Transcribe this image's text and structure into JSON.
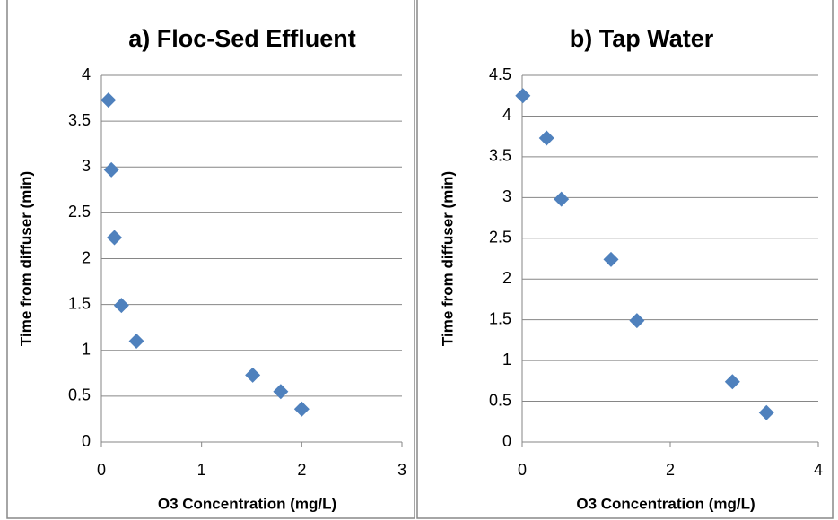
{
  "chart_data": [
    {
      "type": "scatter",
      "title": "a) Floc-Sed Effluent",
      "xlabel": "O3 Concentration (mg/L)",
      "ylabel": "Time from diffuser (min)",
      "x": [
        0.07,
        0.1,
        0.13,
        0.2,
        0.35,
        1.51,
        1.79,
        2.0
      ],
      "y": [
        3.73,
        2.97,
        2.23,
        1.49,
        1.1,
        0.73,
        0.55,
        0.36
      ],
      "xlim": [
        0,
        3
      ],
      "ylim": [
        0,
        4
      ],
      "xticks": [
        0,
        1,
        2,
        3
      ],
      "yticks": [
        0,
        0.5,
        1,
        1.5,
        2,
        2.5,
        3,
        3.5,
        4
      ],
      "color": "#4f81bd",
      "grid": true
    },
    {
      "type": "scatter",
      "title": "b) Tap Water",
      "xlabel": "O3 Concentration (mg/L)",
      "ylabel": "Time from diffuser (min)",
      "x": [
        0.01,
        0.33,
        0.53,
        1.2,
        1.55,
        2.84,
        3.3
      ],
      "y": [
        4.25,
        3.73,
        2.98,
        2.24,
        1.49,
        0.74,
        0.36
      ],
      "xlim": [
        0,
        4
      ],
      "ylim": [
        0,
        4.5
      ],
      "xticks": [
        0,
        2,
        4
      ],
      "yticks": [
        0,
        0.5,
        1,
        1.5,
        2,
        2.5,
        3,
        3.5,
        4,
        4.5
      ],
      "color": "#4f81bd",
      "grid": true
    }
  ]
}
